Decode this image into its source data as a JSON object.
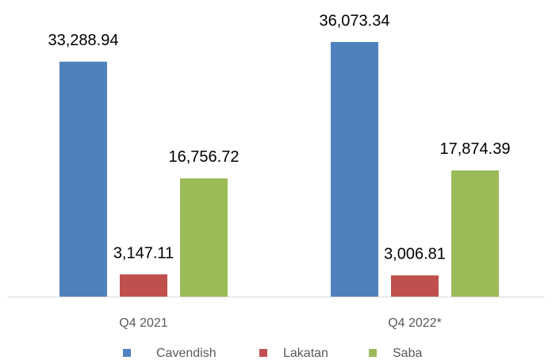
{
  "chart_data": {
    "type": "bar",
    "categories": [
      "Q4 2021",
      "Q4 2022*"
    ],
    "series": [
      {
        "name": "Cavendish",
        "color": "#4f81bd",
        "values": [
          33288.94,
          36073.34
        ],
        "value_labels": [
          "33,288.94",
          "36,073.34"
        ]
      },
      {
        "name": "Lakatan",
        "color": "#c0504d",
        "values": [
          3147.11,
          3006.81
        ],
        "value_labels": [
          "3,147.11",
          "3,006.81"
        ]
      },
      {
        "name": "Saba",
        "color": "#9bbb59",
        "values": [
          16756.72,
          17874.39
        ],
        "value_labels": [
          "16,756.72",
          "17,874.39"
        ]
      }
    ],
    "legend": "bottom"
  }
}
